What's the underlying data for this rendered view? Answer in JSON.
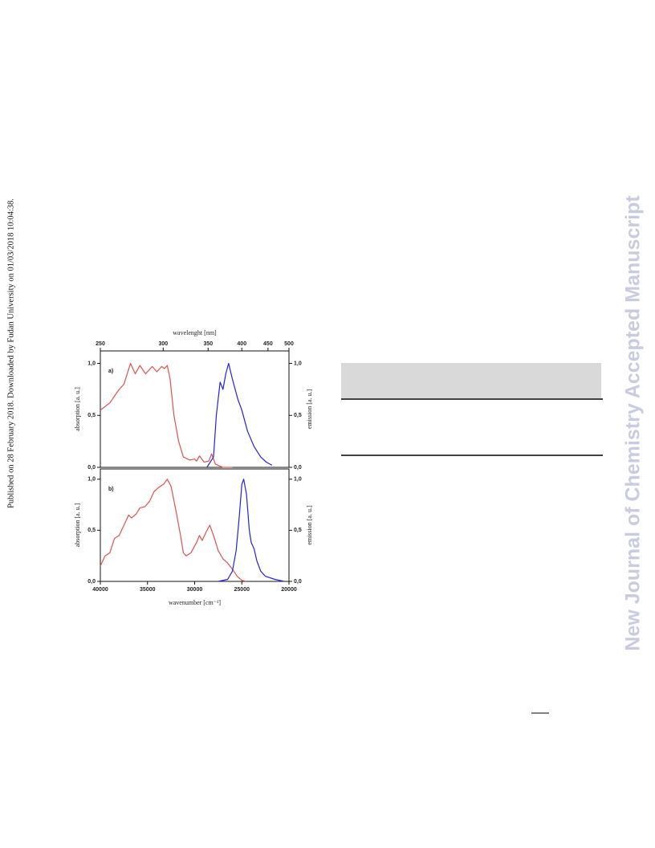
{
  "side_note": "Published on 28 February 2018. Downloaded by Fudan University on 01/03/2018 10:04:38.",
  "watermark": "New Journal of Chemistry Accepted Manuscript",
  "chart_data": [
    {
      "type": "line",
      "panel_label": "a)",
      "x2label": "wavelenght [nm]",
      "ylabel": "absorption [a. u.]",
      "y2label": "emission [a. u.]",
      "xlim": [
        40000,
        20000
      ],
      "ylim": [
        0,
        1.12
      ],
      "y2lim": [
        0,
        1.12
      ],
      "x2ticks": [
        250,
        300,
        350,
        400,
        450,
        500
      ],
      "yticks": [
        {
          "value": 0,
          "label": "0,0"
        },
        {
          "value": 0.5,
          "label": "0,5"
        },
        {
          "value": 1,
          "label": "1,0"
        }
      ],
      "y2ticks": [
        {
          "value": 0,
          "label": "0,0"
        },
        {
          "value": 0.5,
          "label": "0,5"
        },
        {
          "value": 1,
          "label": "1,0"
        }
      ],
      "series": [
        {
          "color": "#d9534f",
          "x": [
            40000,
            39000,
            38000,
            37500,
            36800,
            36300,
            35800,
            35200,
            34500,
            34000,
            33500,
            33200,
            32900,
            32600,
            32200,
            31700,
            31200,
            30500,
            30000,
            29800,
            29500,
            29000,
            28500,
            28200,
            27800,
            27000,
            26000
          ],
          "values": [
            0.55,
            0.62,
            0.75,
            0.8,
            1.0,
            0.9,
            0.98,
            0.9,
            0.97,
            0.92,
            0.97,
            0.95,
            0.98,
            0.85,
            0.5,
            0.25,
            0.1,
            0.07,
            0.08,
            0.06,
            0.11,
            0.05,
            0.06,
            0.13,
            0.03,
            0.0,
            0.0
          ]
        },
        {
          "color": "#2222dd",
          "axis": "y2",
          "x": [
            28700,
            28000,
            27700,
            27300,
            27000,
            26700,
            26400,
            26000,
            25400,
            25000,
            24400,
            23700,
            23000,
            22400,
            21800
          ],
          "values": [
            0.0,
            0.1,
            0.5,
            0.82,
            0.75,
            0.9,
            1.0,
            0.85,
            0.65,
            0.55,
            0.35,
            0.2,
            0.1,
            0.05,
            0.02
          ]
        }
      ]
    },
    {
      "type": "line",
      "panel_label": "b)",
      "xlabel": "wavenumber [cm⁻¹]",
      "ylabel": "absorption [a. u.]",
      "y2label": "emission [a. u.]",
      "xlim": [
        40000,
        20000
      ],
      "ylim": [
        0,
        1.1
      ],
      "y2lim": [
        0,
        1.1
      ],
      "xticks": [
        40000,
        35000,
        30000,
        25000,
        20000
      ],
      "yticks": [
        {
          "value": 0,
          "label": "0,0"
        },
        {
          "value": 0.5,
          "label": "0,5"
        },
        {
          "value": 1,
          "label": "1,0"
        }
      ],
      "y2ticks": [
        {
          "value": 0,
          "label": "0,0"
        },
        {
          "value": 0.5,
          "label": "0,5"
        },
        {
          "value": 1,
          "label": "1,0"
        }
      ],
      "series": [
        {
          "color": "#d9534f",
          "x": [
            40000,
            39500,
            39000,
            38500,
            38000,
            37500,
            37000,
            36700,
            36200,
            35800,
            35300,
            34800,
            34300,
            33800,
            33300,
            32900,
            32500,
            32000,
            31500,
            31200,
            30900,
            30400,
            29800,
            29500,
            29200,
            28800,
            28400,
            28000,
            27500,
            27000,
            26500,
            26000,
            25500,
            25000,
            24500
          ],
          "values": [
            0.15,
            0.25,
            0.28,
            0.42,
            0.45,
            0.55,
            0.65,
            0.62,
            0.66,
            0.72,
            0.73,
            0.78,
            0.88,
            0.92,
            0.95,
            1.0,
            0.93,
            0.7,
            0.45,
            0.28,
            0.25,
            0.28,
            0.38,
            0.45,
            0.4,
            0.48,
            0.55,
            0.45,
            0.3,
            0.22,
            0.18,
            0.12,
            0.05,
            0.01,
            0.0
          ]
        },
        {
          "color": "#2222dd",
          "axis": "y2",
          "x": [
            27500,
            26500,
            26000,
            25600,
            25300,
            25000,
            24800,
            24500,
            24200,
            24000,
            23700,
            23400,
            23000,
            22500,
            21500,
            20500
          ],
          "values": [
            0.0,
            0.02,
            0.1,
            0.3,
            0.6,
            0.95,
            1.0,
            0.85,
            0.5,
            0.38,
            0.32,
            0.2,
            0.1,
            0.05,
            0.02,
            0.0
          ]
        }
      ]
    }
  ]
}
